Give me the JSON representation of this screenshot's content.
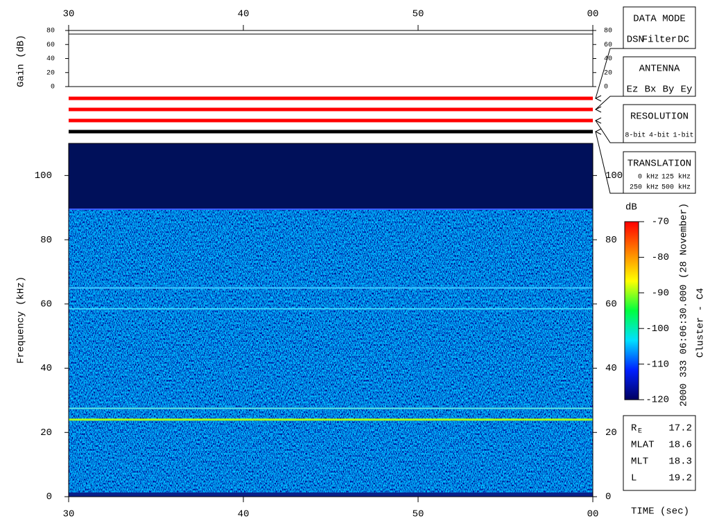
{
  "chart_data": {
    "type": "spectrogram",
    "x_label": "TIME (sec)",
    "y_label": "Frequency (kHz)",
    "xlim": [
      30,
      60
    ],
    "xticks": [
      30,
      40,
      50,
      {
        "value": 60,
        "label": "00"
      }
    ],
    "ylim": [
      0,
      110
    ],
    "yticks": [
      0,
      20,
      40,
      60,
      80,
      100
    ],
    "lines": [
      {
        "freq": 89.5,
        "color": "#3a5cff"
      },
      {
        "freq": 65,
        "color": "#40c8ff"
      },
      {
        "freq": 58.5,
        "color": "#40d8ff"
      },
      {
        "freq": 27.5,
        "color": "#60e8e0"
      },
      {
        "freq": 24,
        "color": "#a8ff20"
      }
    ],
    "gain": {
      "label": "Gain (dB)",
      "ylim": [
        0,
        80
      ],
      "yticks": [
        0,
        20,
        40,
        60,
        80
      ],
      "values": [
        75,
        75
      ]
    },
    "mode_bars": [
      "#ff0000",
      "#ff0000",
      "#ff0000",
      "#000000"
    ],
    "colorbar": {
      "label": "dB",
      "clim": [
        -120,
        -70
      ],
      "ticks": [
        -70,
        -80,
        -90,
        -100,
        -110,
        -120
      ],
      "colormap": [
        "#000060",
        "#0020ff",
        "#00e0ff",
        "#00ff40",
        "#ffff00",
        "#ff8000",
        "#ff0000"
      ]
    },
    "side_title": "2000 333 06:06:30.000 (28 November)",
    "spacecraft": "Cluster - C4",
    "panels": [
      {
        "title": "DATA MODE",
        "items": [
          {
            "text": "DSN",
            "color": "#ff0000"
          },
          {
            "text": "Filter",
            "color": "#00cc00"
          },
          {
            "text": "DC",
            "color": "#0000ff"
          }
        ]
      },
      {
        "title": "ANTENNA",
        "items": [
          {
            "text": "Ez",
            "color": "#ff0000"
          },
          {
            "text": "Bx",
            "color": "#00cc00"
          },
          {
            "text": "By",
            "color": "#0000ff"
          },
          {
            "text": "Ey",
            "color": "#000000"
          }
        ]
      },
      {
        "title": "RESOLUTION",
        "items": [
          {
            "text": "8-bit",
            "color": "#ff0000"
          },
          {
            "text": "4-bit",
            "color": "#00cc00"
          },
          {
            "text": "1-bit",
            "color": "#0000ff"
          }
        ]
      },
      {
        "title": "TRANSLATION",
        "items": [
          {
            "text": "0 kHz",
            "color": "#ff0000"
          },
          {
            "text": "125 kHz",
            "color": "#00cc00"
          },
          {
            "text": "250 kHz",
            "color": "#0000ff"
          },
          {
            "text": "500 kHz",
            "color": "#000000"
          }
        ]
      }
    ],
    "ephemeris": [
      {
        "label": "R",
        "sub": "E",
        "value": 17.2
      },
      {
        "label": "MLAT",
        "value": 18.6
      },
      {
        "label": "MLT",
        "value": 18.3
      },
      {
        "label": "L",
        "value": 19.2
      }
    ]
  }
}
